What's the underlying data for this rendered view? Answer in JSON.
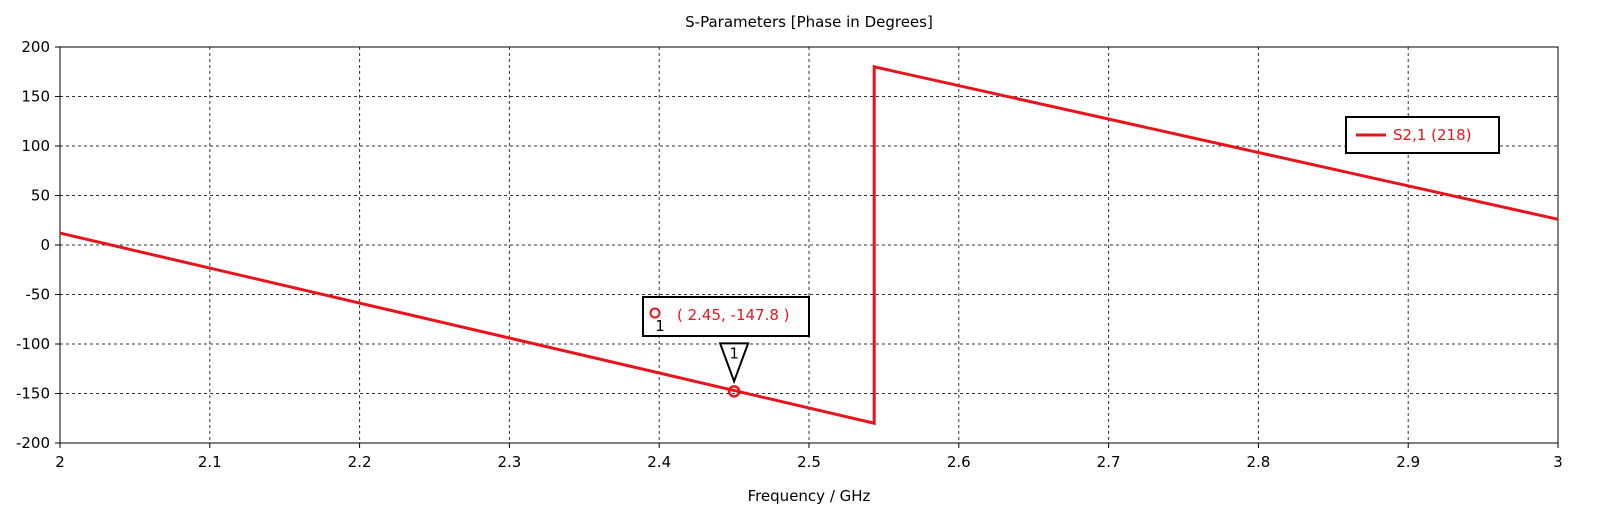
{
  "chart_data": {
    "type": "line",
    "title": "S-Parameters [Phase in Degrees]",
    "xlabel": "Frequency / GHz",
    "ylabel": "",
    "xlim": [
      2,
      3
    ],
    "ylim": [
      -200,
      200
    ],
    "x_ticks": [
      "2",
      "2.1",
      "2.2",
      "2.3",
      "2.4",
      "2.5",
      "2.6",
      "2.7",
      "2.8",
      "2.9",
      "3"
    ],
    "y_ticks": [
      "200",
      "150",
      "100",
      "50",
      "0",
      "-50",
      "-100",
      "-150",
      "-200"
    ],
    "grid": true,
    "legend_position": "top-right",
    "series": [
      {
        "name": "S2,1 (218)",
        "color": "#e8141c",
        "x": [
          2.0,
          2.5435,
          2.5435,
          3.0
        ],
        "y": [
          12,
          -180,
          180,
          26
        ]
      }
    ],
    "markers": [
      {
        "id": "1",
        "x": 2.45,
        "y": -147.8,
        "label": "( 2.45, -147.8 )"
      }
    ]
  }
}
